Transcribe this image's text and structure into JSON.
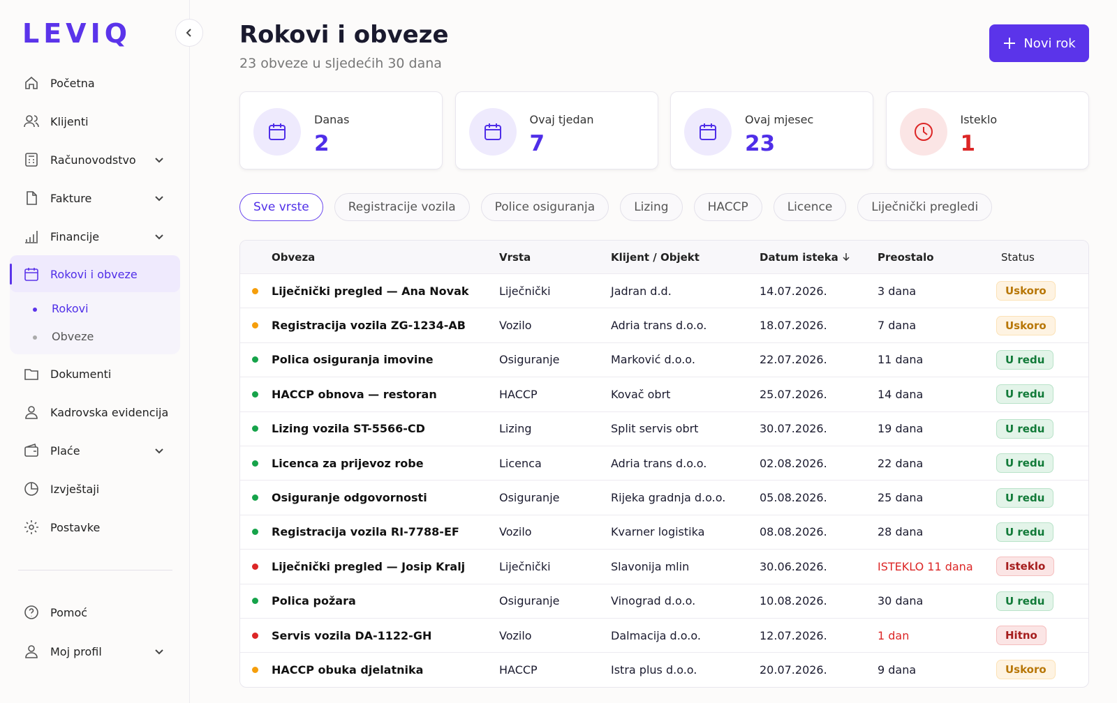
{
  "sidebar": {
    "logo": "LEVIQ",
    "nav": [
      "Početna",
      "Klijenti",
      "Računovodstvo",
      "Fakture",
      "Financije",
      "Rokovi i obveze"
    ],
    "subnav": [
      "Rokovi",
      "Obveze"
    ],
    "nav2": [
      "Dokumenti",
      "Kadrovska evidencija",
      "Plaće",
      "Izvještaji",
      "Postavke"
    ],
    "footer": [
      "Pomoć",
      "Moj profil"
    ]
  },
  "header": {
    "title": "Rokovi i obveze",
    "subtitle": "23 obveze u sljedećih 30 dana",
    "button": "Novi rok"
  },
  "stats": [
    {
      "label": "Danas",
      "value": 2,
      "color": "#4f2ee8"
    },
    {
      "label": "Ovaj tjedan",
      "value": 7,
      "color": "#4f2ee8"
    },
    {
      "label": "Ovaj mjesec",
      "value": 23,
      "color": "#4f2ee8"
    },
    {
      "label": "Isteklo",
      "value": 1,
      "color": "#dc2626"
    }
  ],
  "filters": [
    "Sve vrste",
    "Registracije vozila",
    "Police osiguranja",
    "Lizing",
    "HACCP",
    "Licence",
    "Liječnički pregledi"
  ],
  "table": {
    "columns": [
      "Obveza",
      "Vrsta",
      "Klijent / Objekt",
      "Datum isteka",
      "Preostalo",
      "Status"
    ],
    "alert_color": "#dc2626",
    "rows": [
      [
        "Liječnički pregled — Ana Novak",
        "Liječnički",
        "Jadran d.d.",
        "14.07.2026.",
        "3 dana",
        "Uskoro"
      ],
      [
        "Registracija vozila ZG-1234-AB",
        "Vozilo",
        "Adria trans d.o.o.",
        "18.07.2026.",
        "7 dana",
        "Uskoro"
      ],
      [
        "Polica osiguranja imovine",
        "Osiguranje",
        "Marković d.o.o.",
        "22.07.2026.",
        "11 dana",
        "U redu"
      ],
      [
        "HACCP obnova — restoran",
        "HACCP",
        "Kovač obrt",
        "25.07.2026.",
        "14 dana",
        "U redu"
      ],
      [
        "Lizing vozila ST-5566-CD",
        "Lizing",
        "Split servis obrt",
        "30.07.2026.",
        "19 dana",
        "U redu"
      ],
      [
        "Licenca za prijevoz robe",
        "Licenca",
        "Adria trans d.o.o.",
        "02.08.2026.",
        "22 dana",
        "U redu"
      ],
      [
        "Osiguranje odgovornosti",
        "Osiguranje",
        "Rijeka gradnja d.o.o.",
        "05.08.2026.",
        "25 dana",
        "U redu"
      ],
      [
        "Registracija vozila RI-7788-EF",
        "Vozilo",
        "Kvarner logistika",
        "08.08.2026.",
        "28 dana",
        "U redu"
      ],
      [
        "Liječnički pregled — Josip Kralj",
        "Liječnički",
        "Slavonija mlin",
        "30.06.2026.",
        "ISTEKLO 11 dana",
        "Isteklo"
      ],
      [
        "Polica požara",
        "Osiguranje",
        "Vinograd d.o.o.",
        "10.08.2026.",
        "30 dana",
        "U redu"
      ],
      [
        "Servis vozila DA-1122-GH",
        "Vozilo",
        "Dalmacija d.o.o.",
        "12.07.2026.",
        "1 dan",
        "Hitno"
      ],
      [
        "HACCP obuka djelatnika",
        "HACCP",
        "Istra plus d.o.o.",
        "20.07.2026.",
        "9 dana",
        "Uskoro"
      ]
    ],
    "row_colors": [
      "#f59e0b",
      "#f59e0b",
      "#16a34a",
      "#16a34a",
      "#16a34a",
      "#16a34a",
      "#16a34a",
      "#16a34a",
      "#dc2626",
      "#16a34a",
      "#dc2626",
      "#f59e0b"
    ]
  }
}
